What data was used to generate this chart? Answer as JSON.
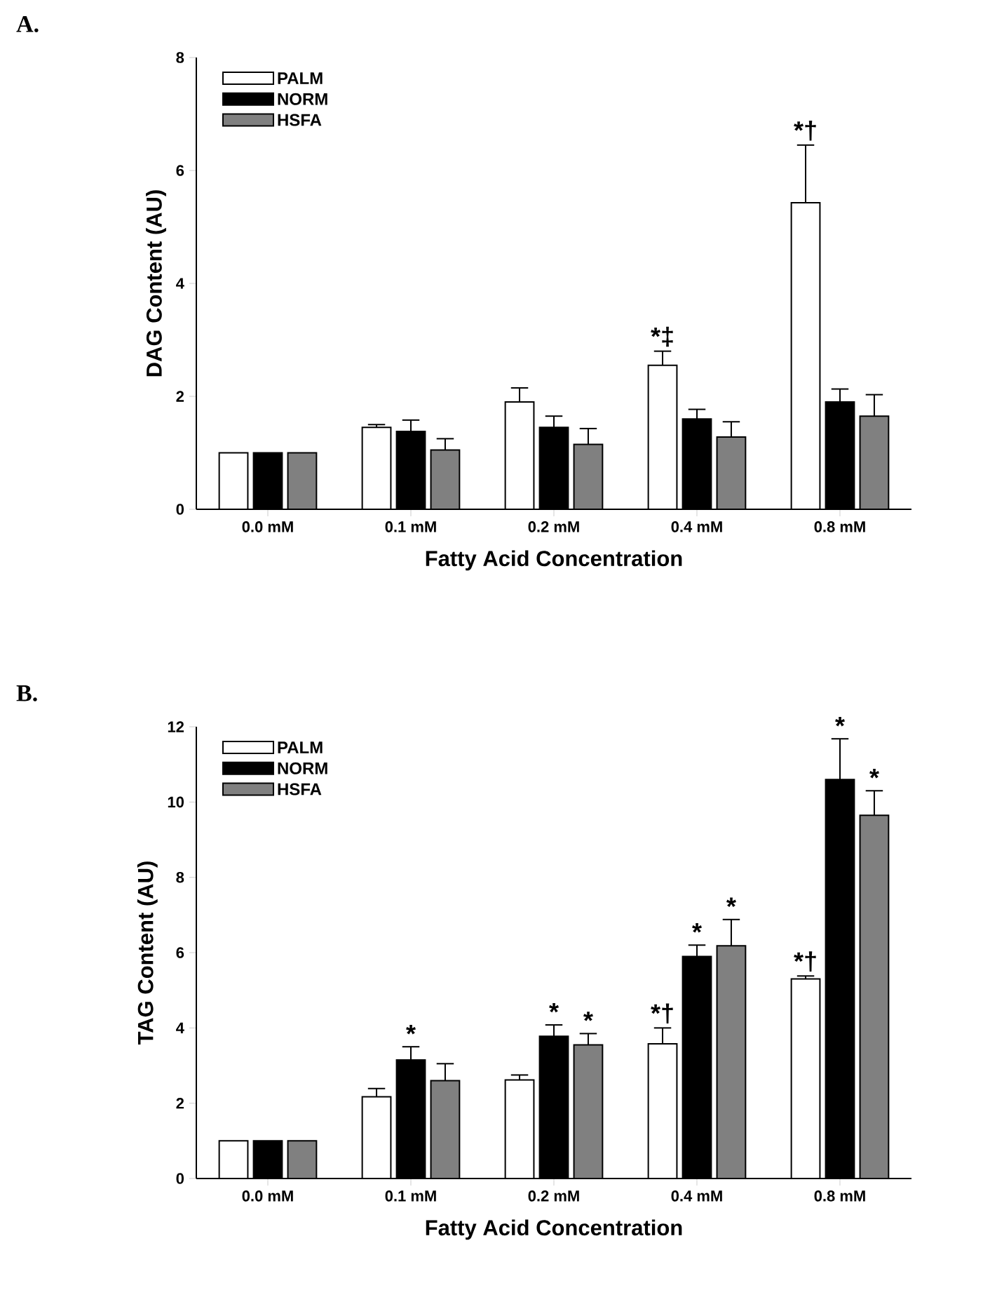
{
  "chart_data": [
    {
      "type": "bar",
      "title": "A.",
      "xlabel": "Fatty Acid Concentration",
      "ylabel": "DAG Content (AU)",
      "categories": [
        "0.0 mM",
        "0.1 mM",
        "0.2 mM",
        "0.4 mM",
        "0.8 mM"
      ],
      "series": [
        {
          "name": "PALM",
          "color": "#ffffff",
          "values": [
            1,
            1.45,
            1.9,
            2.55,
            5.43
          ],
          "errors": [
            null,
            0.05,
            0.25,
            0.25,
            1.02
          ],
          "value_labels": [
            null,
            null,
            null,
            "*‡",
            "*†"
          ]
        },
        {
          "name": "NORM",
          "color": "#000000",
          "values": [
            1,
            1.38,
            1.45,
            1.6,
            1.9
          ],
          "errors": [
            null,
            0.2,
            0.2,
            0.17,
            0.23
          ]
        },
        {
          "name": "HSFA",
          "color": "#808080",
          "values": [
            1,
            1.05,
            1.15,
            1.28,
            1.65
          ],
          "errors": [
            null,
            0.2,
            0.28,
            0.27,
            0.38
          ]
        }
      ],
      "ylim": [
        0,
        8
      ],
      "yticks": [
        0,
        2,
        4,
        6,
        8
      ],
      "legend": "top left"
    },
    {
      "type": "bar",
      "title": "B.",
      "xlabel": "Fatty Acid Concentration",
      "ylabel": "TAG Content (AU)",
      "categories": [
        "0.0 mM",
        "0.1 mM",
        "0.2 mM",
        "0.4 mM",
        "0.8 mM"
      ],
      "series": [
        {
          "name": "PALM",
          "color": "#ffffff",
          "values": [
            1,
            2.17,
            2.62,
            3.58,
            5.3
          ],
          "errors": [
            null,
            0.22,
            0.13,
            0.42,
            0.08
          ],
          "value_labels": [
            null,
            null,
            null,
            "*†",
            "*†"
          ]
        },
        {
          "name": "NORM",
          "color": "#000000",
          "values": [
            1,
            3.15,
            3.78,
            5.9,
            10.6
          ],
          "errors": [
            null,
            0.35,
            0.3,
            0.3,
            1.08
          ],
          "value_labels": [
            null,
            "*",
            "*",
            "*",
            "*"
          ]
        },
        {
          "name": "HSFA",
          "color": "#808080",
          "values": [
            1,
            2.6,
            3.55,
            6.18,
            9.65
          ],
          "errors": [
            null,
            0.45,
            0.3,
            0.7,
            0.65
          ],
          "value_labels": [
            null,
            null,
            "*",
            "*",
            "*"
          ]
        }
      ],
      "ylim": [
        0,
        12
      ],
      "yticks": [
        0,
        2,
        4,
        6,
        8,
        10,
        12
      ],
      "legend": "top left"
    }
  ]
}
